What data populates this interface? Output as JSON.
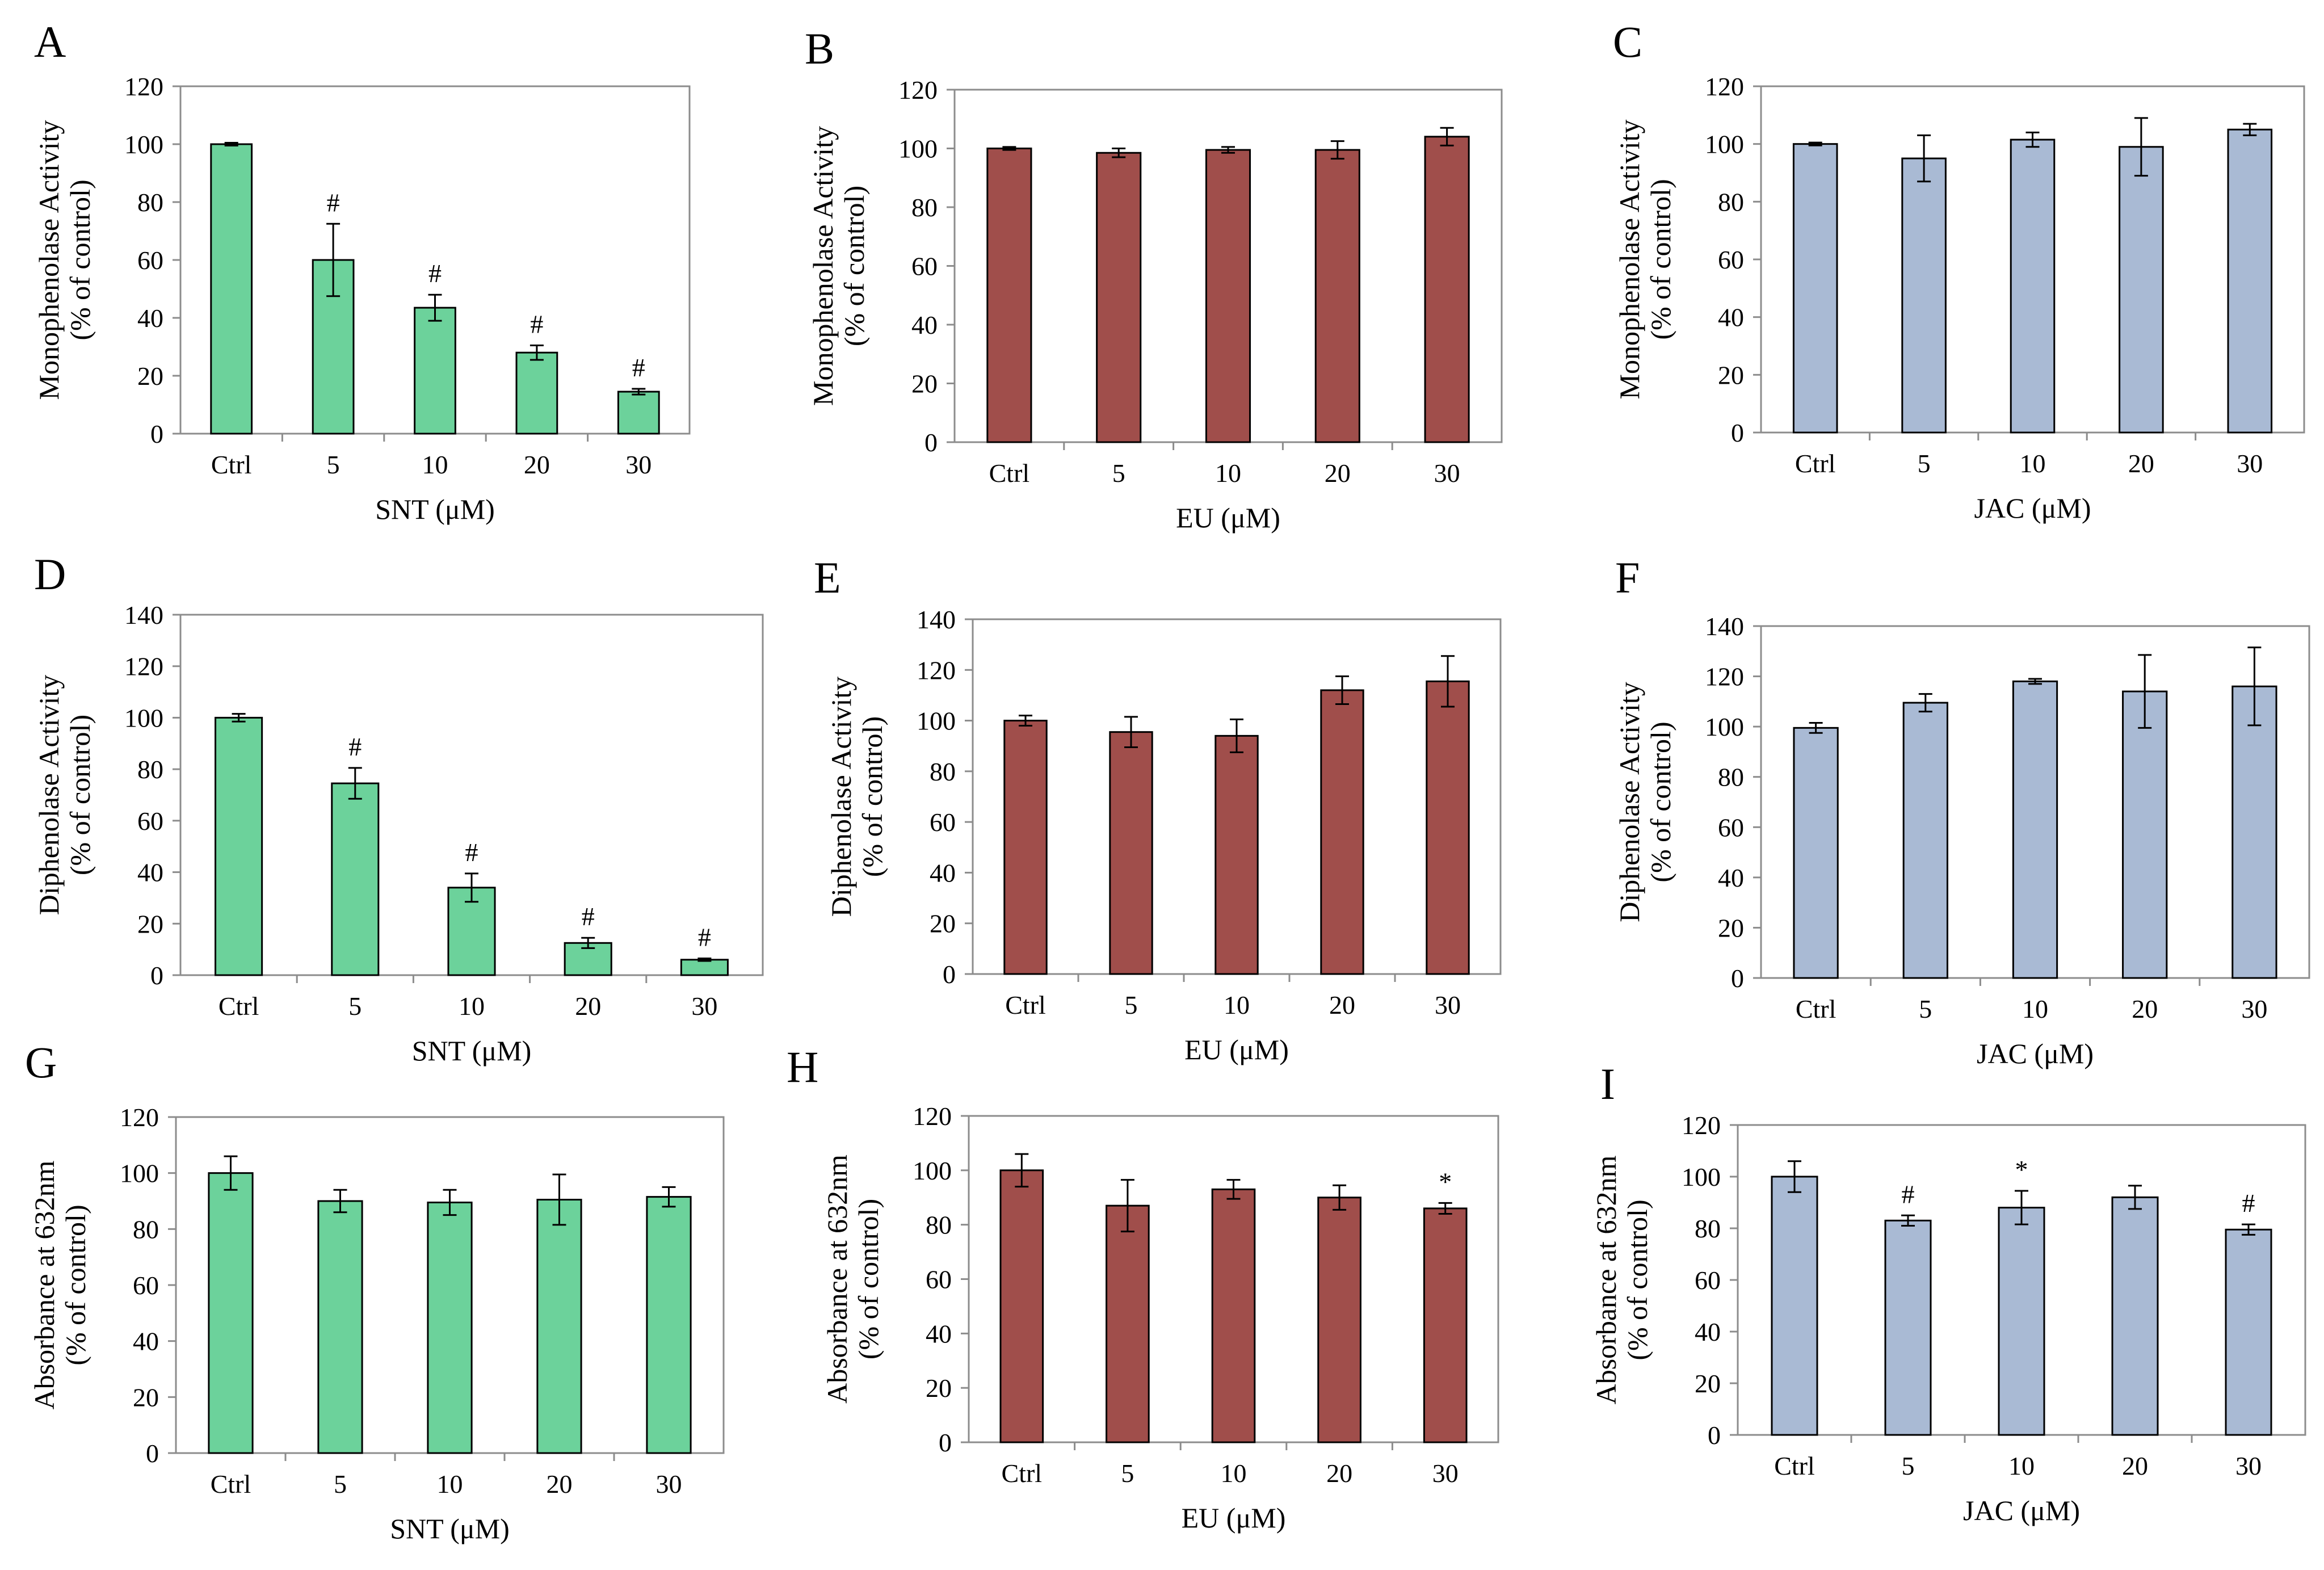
{
  "figure": {
    "colors": {
      "SNT": "#6cd29b",
      "EU": "#a04e4b",
      "JAC": "#a9bad4"
    }
  },
  "chart_data": [
    {
      "panel": "A",
      "type": "bar",
      "compound": "SNT",
      "categories": [
        "Ctrl",
        "5",
        "10",
        "20",
        "30"
      ],
      "values": [
        100,
        60,
        43.5,
        28,
        14.5
      ],
      "errors": [
        0.5,
        12.5,
        4.5,
        2.5,
        1
      ],
      "significance": [
        "",
        "#",
        "#",
        "#",
        "#"
      ],
      "ylabel_line1": "Monophenolase Activity",
      "ylabel_line2": "(% of control)",
      "xlabel": "SNT (μM)",
      "ylim": [
        0,
        120
      ],
      "yticks": [
        0,
        20,
        40,
        60,
        80,
        100,
        120
      ]
    },
    {
      "panel": "B",
      "type": "bar",
      "compound": "EU",
      "categories": [
        "Ctrl",
        "5",
        "10",
        "20",
        "30"
      ],
      "values": [
        100,
        98.5,
        99.5,
        99.5,
        104
      ],
      "errors": [
        0.5,
        1.5,
        1,
        3,
        3
      ],
      "significance": [
        "",
        "",
        "",
        "",
        ""
      ],
      "ylabel_line1": "Monophenolase Activity",
      "ylabel_line2": "(% of control)",
      "xlabel": "EU (μM)",
      "ylim": [
        0,
        120
      ],
      "yticks": [
        0,
        20,
        40,
        60,
        80,
        100,
        120
      ]
    },
    {
      "panel": "C",
      "type": "bar",
      "compound": "JAC",
      "categories": [
        "Ctrl",
        "5",
        "10",
        "20",
        "30"
      ],
      "values": [
        100,
        95,
        101.5,
        99,
        105
      ],
      "errors": [
        0.5,
        8,
        2.5,
        10,
        2
      ],
      "significance": [
        "",
        "",
        "",
        "",
        ""
      ],
      "ylabel_line1": "Monophenolase Activity",
      "ylabel_line2": "(% of control)",
      "xlabel": "JAC (μM)",
      "ylim": [
        0,
        120
      ],
      "yticks": [
        0,
        20,
        40,
        60,
        80,
        100,
        120
      ]
    },
    {
      "panel": "D",
      "type": "bar",
      "compound": "SNT",
      "categories": [
        "Ctrl",
        "5",
        "10",
        "20",
        "30"
      ],
      "values": [
        100,
        74.5,
        34,
        12.5,
        6
      ],
      "errors": [
        1.5,
        6,
        5.5,
        2,
        0.5
      ],
      "significance": [
        "",
        "#",
        "#",
        "#",
        "#"
      ],
      "ylabel_line1": "Diphenolase Activity",
      "ylabel_line2": "(% of control)",
      "xlabel": "SNT (μM)",
      "ylim": [
        0,
        140
      ],
      "yticks": [
        0,
        20,
        40,
        60,
        80,
        100,
        120,
        140
      ]
    },
    {
      "panel": "E",
      "type": "bar",
      "compound": "EU",
      "categories": [
        "Ctrl",
        "5",
        "10",
        "20",
        "30"
      ],
      "values": [
        100,
        95.5,
        94,
        112,
        115.5
      ],
      "errors": [
        2,
        6,
        6.5,
        5.5,
        10
      ],
      "significance": [
        "",
        "",
        "",
        "",
        ""
      ],
      "ylabel_line1": "Diphenolase Activity",
      "ylabel_line2": "(% of control)",
      "xlabel": "EU (μM)",
      "ylim": [
        0,
        140
      ],
      "yticks": [
        0,
        20,
        40,
        60,
        80,
        100,
        120,
        140
      ]
    },
    {
      "panel": "F",
      "type": "bar",
      "compound": "JAC",
      "categories": [
        "Ctrl",
        "5",
        "10",
        "20",
        "30"
      ],
      "values": [
        99.5,
        109.5,
        118,
        114,
        116
      ],
      "errors": [
        2,
        3.5,
        1,
        14.5,
        15.5
      ],
      "significance": [
        "",
        "",
        "",
        "",
        ""
      ],
      "ylabel_line1": "Diphenolase Activity",
      "ylabel_line2": "(% of control)",
      "xlabel": "JAC (μM)",
      "ylim": [
        0,
        140
      ],
      "yticks": [
        0,
        20,
        40,
        60,
        80,
        100,
        120,
        140
      ]
    },
    {
      "panel": "G",
      "type": "bar",
      "compound": "SNT",
      "categories": [
        "Ctrl",
        "5",
        "10",
        "20",
        "30"
      ],
      "values": [
        100,
        90,
        89.5,
        90.5,
        91.5
      ],
      "errors": [
        6,
        4,
        4.5,
        9,
        3.5
      ],
      "significance": [
        "",
        "",
        "",
        "",
        ""
      ],
      "ylabel_line1": "Absorbance  at 632nm",
      "ylabel_line2": "(% of control)",
      "xlabel": "SNT (μM)",
      "ylim": [
        0,
        120
      ],
      "yticks": [
        0,
        20,
        40,
        60,
        80,
        100,
        120
      ]
    },
    {
      "panel": "H",
      "type": "bar",
      "compound": "EU",
      "categories": [
        "Ctrl",
        "5",
        "10",
        "20",
        "30"
      ],
      "values": [
        100,
        87,
        93,
        90,
        86
      ],
      "errors": [
        6,
        9.5,
        3.5,
        4.5,
        2
      ],
      "significance": [
        "",
        "",
        "",
        "",
        "*"
      ],
      "ylabel_line1": "Absorbance  at 632nm",
      "ylabel_line2": "(% of control)",
      "xlabel": "EU (μM)",
      "ylim": [
        0,
        120
      ],
      "yticks": [
        0,
        20,
        40,
        60,
        80,
        100,
        120
      ]
    },
    {
      "panel": "I",
      "type": "bar",
      "compound": "JAC",
      "categories": [
        "Ctrl",
        "5",
        "10",
        "20",
        "30"
      ],
      "values": [
        100,
        83,
        88,
        92,
        79.5
      ],
      "errors": [
        6,
        2,
        6.5,
        4.5,
        2
      ],
      "significance": [
        "",
        "#",
        "*",
        "",
        "#"
      ],
      "ylabel_line1": "Absorbance  at 632nm",
      "ylabel_line2": "(% of control)",
      "xlabel": "JAC (μM)",
      "ylim": [
        0,
        120
      ],
      "yticks": [
        0,
        20,
        40,
        60,
        80,
        100,
        120
      ]
    }
  ]
}
